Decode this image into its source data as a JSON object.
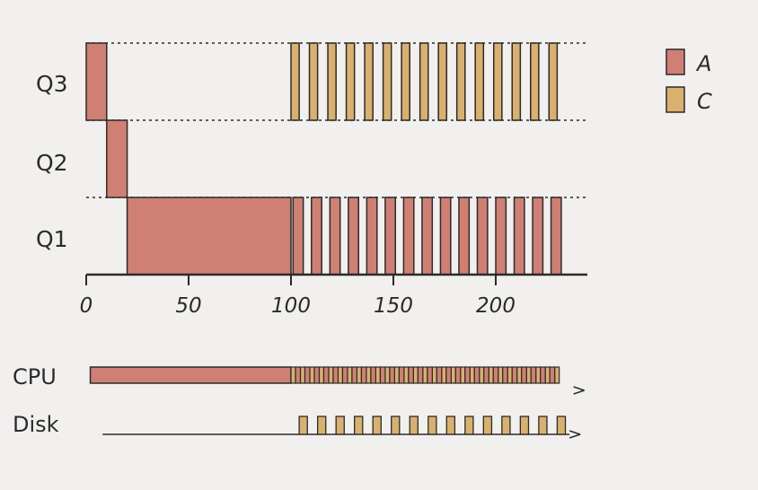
{
  "colors": {
    "A": "#d07f73",
    "C": "#d9b06e",
    "background": "#f1f0ee",
    "ink": "#2b2b2b"
  },
  "chart_data": {
    "type": "gantt",
    "x_ticks": [
      "0",
      "50",
      "100",
      "150",
      "200"
    ],
    "x_range": [
      0,
      240
    ],
    "queues": [
      "Q3",
      "Q2",
      "Q1"
    ],
    "legend": [
      {
        "key": "A",
        "label": "A"
      },
      {
        "key": "C",
        "label": "C"
      }
    ],
    "legend_position": "top-right",
    "schedule": {
      "A_Q3": [
        0,
        10
      ],
      "A_Q2": [
        10,
        20
      ],
      "A_Q1_long": [
        20,
        100
      ],
      "A_Q1_slices": {
        "start": 101,
        "period": 9,
        "width": 5,
        "count": 15
      },
      "C_Q3_slices": {
        "start": 100,
        "period": 9,
        "width": 4,
        "count": 15
      }
    },
    "resources": [
      {
        "label": "CPU"
      },
      {
        "label": "Disk"
      }
    ]
  }
}
